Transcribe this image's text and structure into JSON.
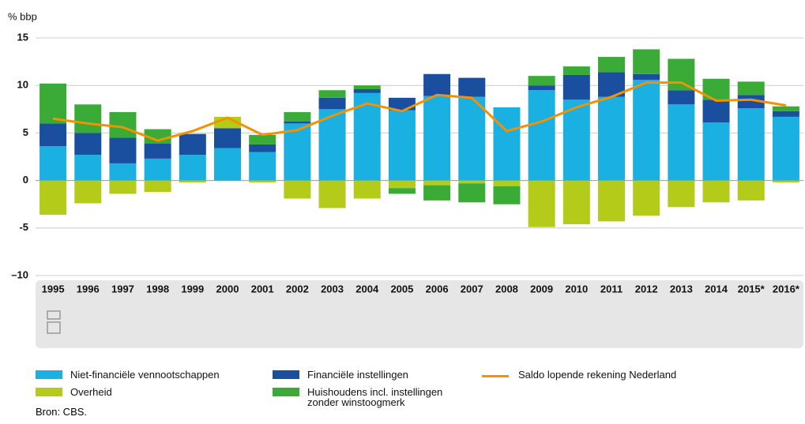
{
  "chart_data": {
    "type": "bar",
    "stacked": true,
    "y_label": "% bbp",
    "categories": [
      "1995",
      "1996",
      "1997",
      "1998",
      "1999",
      "2000",
      "2001",
      "2002",
      "2003",
      "2004",
      "2005",
      "2006",
      "2007",
      "2008",
      "2009",
      "2010",
      "2011",
      "2012",
      "2013",
      "2014",
      "2015*",
      "2016*"
    ],
    "series": [
      {
        "name": "Niet-financiële vennootschappen",
        "color": "#1bb0e2",
        "values": [
          3.6,
          2.7,
          1.8,
          2.3,
          2.7,
          3.4,
          3.0,
          6.0,
          7.5,
          9.2,
          7.4,
          8.9,
          8.8,
          7.7,
          9.5,
          8.5,
          8.8,
          10.6,
          8.0,
          6.1,
          7.6,
          6.7
        ]
      },
      {
        "name": "Financiële instellingen",
        "color": "#1a4f9f",
        "values": [
          2.4,
          2.3,
          2.7,
          1.6,
          2.2,
          2.1,
          0.8,
          0.2,
          1.2,
          0.4,
          1.3,
          2.3,
          2.0,
          0,
          0.5,
          2.6,
          2.6,
          0.6,
          1.5,
          2.4,
          1.4,
          0.6
        ]
      },
      {
        "name": "Overheid",
        "color": "#b4cb1a",
        "values": [
          -3.6,
          -2.4,
          -1.4,
          -1.2,
          -0.2,
          1.2,
          -0.2,
          -1.9,
          -2.9,
          -1.9,
          -0.8,
          -0.5,
          -0.3,
          -0.6,
          -4.9,
          -4.6,
          -4.3,
          -3.7,
          -2.8,
          -2.3,
          -2.1,
          -0.2
        ]
      },
      {
        "name": "Huishoudens incl. instellingen zonder winstoogmerk",
        "color": "#3aab36",
        "values": [
          4.2,
          3.0,
          2.7,
          1.5,
          0,
          0,
          1.0,
          1.0,
          0.8,
          0.4,
          -0.6,
          -1.6,
          -2.0,
          -1.9,
          1.0,
          0.9,
          1.6,
          2.6,
          3.3,
          2.2,
          1.4,
          0.5
        ]
      },
      {
        "name": "Saldo lopende rekening Nederland",
        "type": "line",
        "color": "#f39200",
        "values": [
          6.5,
          6.0,
          5.6,
          4.2,
          5.2,
          6.6,
          4.8,
          5.3,
          6.8,
          8.1,
          7.3,
          9.0,
          8.7,
          5.2,
          6.2,
          7.7,
          8.8,
          10.3,
          10.3,
          8.4,
          8.5,
          7.9
        ]
      }
    ],
    "ylim": [
      -10,
      15
    ],
    "yticks": [
      {
        "value": -10,
        "label": "–10"
      },
      {
        "value": -5,
        "label": "-5"
      },
      0,
      5,
      10,
      15
    ],
    "grid": true,
    "source": "Bron: CBS."
  }
}
